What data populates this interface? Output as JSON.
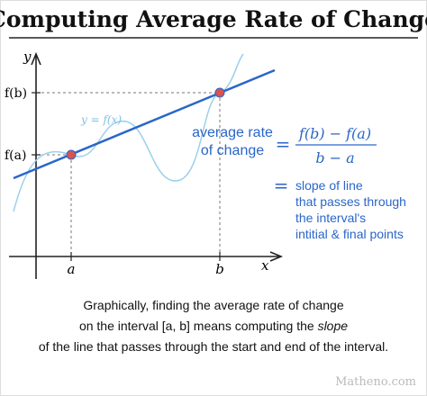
{
  "title": "Computing Average Rate of Change",
  "graph": {
    "y_axis_label": "y",
    "x_axis_label": "x",
    "fb_label": "f(b)",
    "fa_label": "f(a)",
    "a_label": "a",
    "b_label": "b",
    "curve_label": "y = f(x)"
  },
  "formula": {
    "lhs": [
      "average rate",
      "of change"
    ],
    "equals": "=",
    "numerator": "f(b) − f(a)",
    "denominator": "b − a",
    "equals2": "=",
    "explanation": [
      "slope of line",
      "that passes through",
      "the interval's",
      "intitial & final points"
    ]
  },
  "caption": {
    "line1": "Graphically, finding the average rate of change",
    "line2_start": "on the interval [a, b] means computing the ",
    "line2_italic": "slope",
    "line3": "of the line that passes through the start and end of the interval."
  },
  "watermark": "Matheno.com"
}
